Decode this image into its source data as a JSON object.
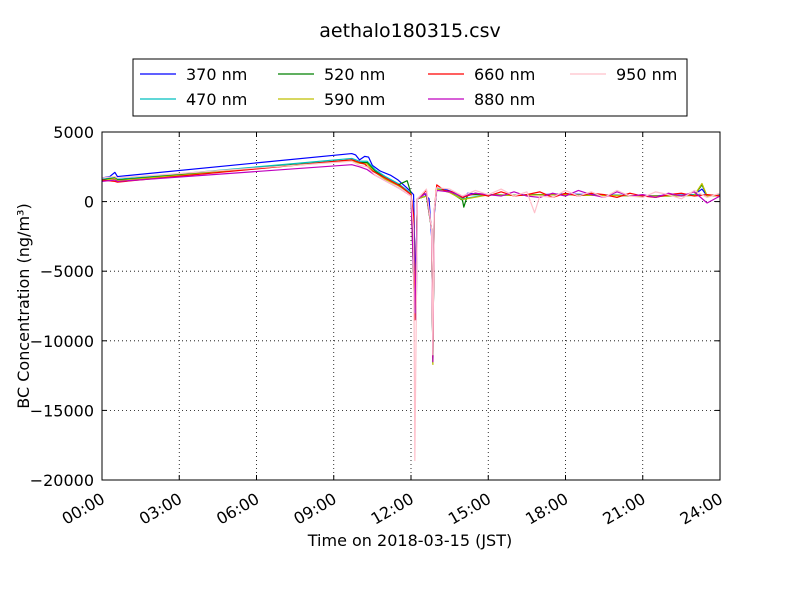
{
  "chart_data": {
    "type": "line",
    "title": "aethalo180315.csv",
    "xlabel": "Time on 2018-03-15 (JST)",
    "ylabel": "BC Concentration (ng/m³)",
    "xlim": [
      "00:00",
      "24:00"
    ],
    "ylim": [
      -20000,
      5000
    ],
    "xticks": [
      "00:00",
      "03:00",
      "06:00",
      "09:00",
      "12:00",
      "15:00",
      "18:00",
      "21:00",
      "24:00"
    ],
    "yticks": [
      5000,
      0,
      -5000,
      -10000,
      -15000,
      -20000
    ],
    "ytick_labels": [
      "5000",
      "0",
      "−5000",
      "−10000",
      "−15000",
      "−20000"
    ],
    "grid": true,
    "legend_position": "top, above plot",
    "series": [
      {
        "name": "370 nm",
        "color": "#0000ff",
        "points": [
          [
            0.0,
            1700
          ],
          [
            0.3,
            1800
          ],
          [
            0.5,
            2100
          ],
          [
            0.6,
            1800
          ],
          [
            9.7,
            3450
          ],
          [
            9.85,
            3350
          ],
          [
            10.0,
            3000
          ],
          [
            10.2,
            3250
          ],
          [
            10.35,
            3200
          ],
          [
            10.5,
            2600
          ],
          [
            10.8,
            2200
          ],
          [
            11.2,
            1900
          ],
          [
            11.5,
            1550
          ],
          [
            11.8,
            1050
          ],
          [
            12.0,
            700
          ],
          [
            12.1,
            500
          ],
          [
            12.15,
            -4000
          ],
          [
            12.2,
            -8500
          ],
          [
            12.25,
            200
          ],
          [
            12.5,
            600
          ],
          [
            12.7,
            200
          ],
          [
            12.8,
            -2500
          ],
          [
            12.85,
            -11300
          ],
          [
            12.9,
            -1000
          ],
          [
            13.0,
            1000
          ],
          [
            13.3,
            900
          ],
          [
            13.6,
            700
          ],
          [
            13.9,
            500
          ],
          [
            14.0,
            200
          ],
          [
            14.2,
            600
          ],
          [
            15.0,
            500
          ],
          [
            16.0,
            450
          ],
          [
            17.0,
            500
          ],
          [
            18.0,
            550
          ],
          [
            19.0,
            500
          ],
          [
            20.0,
            450
          ],
          [
            21.0,
            400
          ],
          [
            22.0,
            450
          ],
          [
            23.0,
            500
          ],
          [
            23.3,
            900
          ],
          [
            23.5,
            400
          ],
          [
            24.0,
            500
          ]
        ]
      },
      {
        "name": "470 nm",
        "color": "#00bfbf",
        "points": [
          [
            0.0,
            1600
          ],
          [
            0.5,
            1750
          ],
          [
            0.6,
            1600
          ],
          [
            9.7,
            3100
          ],
          [
            10.0,
            2900
          ],
          [
            10.3,
            2900
          ],
          [
            10.6,
            2300
          ],
          [
            11.0,
            1800
          ],
          [
            11.5,
            1300
          ],
          [
            12.0,
            600
          ],
          [
            12.15,
            -8000
          ],
          [
            12.25,
            200
          ],
          [
            12.6,
            400
          ],
          [
            12.8,
            -2000
          ],
          [
            12.85,
            -11500
          ],
          [
            12.9,
            -800
          ],
          [
            13.0,
            1000
          ],
          [
            13.5,
            700
          ],
          [
            14.0,
            200
          ],
          [
            15.0,
            500
          ],
          [
            16.0,
            450
          ],
          [
            17.0,
            500
          ],
          [
            18.0,
            500
          ],
          [
            19.0,
            450
          ],
          [
            20.0,
            450
          ],
          [
            21.0,
            400
          ],
          [
            22.0,
            400
          ],
          [
            23.0,
            500
          ],
          [
            24.0,
            450
          ]
        ]
      },
      {
        "name": "520 nm",
        "color": "#008000",
        "points": [
          [
            0.0,
            1550
          ],
          [
            0.5,
            1700
          ],
          [
            0.6,
            1550
          ],
          [
            9.7,
            3000
          ],
          [
            10.0,
            2800
          ],
          [
            10.3,
            2800
          ],
          [
            10.6,
            2200
          ],
          [
            11.0,
            1700
          ],
          [
            11.5,
            1200
          ],
          [
            11.85,
            1500
          ],
          [
            12.0,
            600
          ],
          [
            12.15,
            -8200
          ],
          [
            12.25,
            200
          ],
          [
            12.6,
            400
          ],
          [
            12.8,
            -2000
          ],
          [
            12.85,
            -11600
          ],
          [
            12.9,
            -800
          ],
          [
            13.0,
            900
          ],
          [
            13.5,
            700
          ],
          [
            14.0,
            100
          ],
          [
            14.05,
            -400
          ],
          [
            14.2,
            500
          ],
          [
            15.0,
            500
          ],
          [
            16.0,
            450
          ],
          [
            17.0,
            500
          ],
          [
            18.0,
            500
          ],
          [
            19.0,
            450
          ],
          [
            20.0,
            450
          ],
          [
            21.0,
            400
          ],
          [
            22.0,
            400
          ],
          [
            23.0,
            450
          ],
          [
            23.3,
            1200
          ],
          [
            23.5,
            400
          ],
          [
            24.0,
            450
          ]
        ]
      },
      {
        "name": "590 nm",
        "color": "#bfbf00",
        "points": [
          [
            0.0,
            1500
          ],
          [
            0.5,
            1650
          ],
          [
            0.6,
            1500
          ],
          [
            9.7,
            2950
          ],
          [
            10.0,
            2750
          ],
          [
            10.3,
            2700
          ],
          [
            10.6,
            2100
          ],
          [
            11.0,
            1600
          ],
          [
            11.5,
            1150
          ],
          [
            12.0,
            550
          ],
          [
            12.15,
            -8300
          ],
          [
            12.25,
            200
          ],
          [
            12.6,
            400
          ],
          [
            12.8,
            -2000
          ],
          [
            12.85,
            -11700
          ],
          [
            12.9,
            -800
          ],
          [
            13.0,
            900
          ],
          [
            13.5,
            650
          ],
          [
            14.0,
            150
          ],
          [
            15.0,
            480
          ],
          [
            16.0,
            450
          ],
          [
            17.0,
            480
          ],
          [
            18.0,
            500
          ],
          [
            19.0,
            450
          ],
          [
            20.0,
            430
          ],
          [
            21.0,
            400
          ],
          [
            22.0,
            400
          ],
          [
            23.0,
            450
          ],
          [
            23.3,
            1300
          ],
          [
            23.5,
            400
          ],
          [
            24.0,
            450
          ]
        ]
      },
      {
        "name": "660 nm",
        "color": "#ff0000",
        "points": [
          [
            0.0,
            1550
          ],
          [
            0.5,
            1450
          ],
          [
            0.6,
            1400
          ],
          [
            9.7,
            3000
          ],
          [
            10.0,
            2800
          ],
          [
            10.2,
            2700
          ],
          [
            10.5,
            2200
          ],
          [
            10.8,
            1900
          ],
          [
            11.2,
            1500
          ],
          [
            11.6,
            1100
          ],
          [
            12.0,
            500
          ],
          [
            12.1,
            -1000
          ],
          [
            12.15,
            -8500
          ],
          [
            12.25,
            200
          ],
          [
            12.6,
            800
          ],
          [
            12.8,
            -2000
          ],
          [
            12.85,
            -11200
          ],
          [
            12.9,
            -700
          ],
          [
            13.0,
            1200
          ],
          [
            13.3,
            800
          ],
          [
            13.6,
            700
          ],
          [
            14.0,
            300
          ],
          [
            14.5,
            600
          ],
          [
            15.0,
            400
          ],
          [
            15.5,
            700
          ],
          [
            16.0,
            400
          ],
          [
            16.5,
            500
          ],
          [
            17.0,
            700
          ],
          [
            17.5,
            300
          ],
          [
            18.0,
            600
          ],
          [
            18.5,
            400
          ],
          [
            19.0,
            600
          ],
          [
            19.5,
            500
          ],
          [
            20.0,
            300
          ],
          [
            20.5,
            600
          ],
          [
            21.0,
            400
          ],
          [
            21.5,
            300
          ],
          [
            22.0,
            500
          ],
          [
            22.5,
            600
          ],
          [
            23.0,
            400
          ],
          [
            23.5,
            500
          ],
          [
            24.0,
            400
          ]
        ]
      },
      {
        "name": "880 nm",
        "color": "#bf00bf",
        "points": [
          [
            0.0,
            1450
          ],
          [
            0.5,
            1550
          ],
          [
            0.6,
            1450
          ],
          [
            9.7,
            2650
          ],
          [
            10.0,
            2500
          ],
          [
            10.3,
            2300
          ],
          [
            10.6,
            1900
          ],
          [
            11.0,
            1500
          ],
          [
            11.5,
            1000
          ],
          [
            12.0,
            400
          ],
          [
            12.15,
            -8000
          ],
          [
            12.25,
            200
          ],
          [
            12.6,
            600
          ],
          [
            12.8,
            -2000
          ],
          [
            12.85,
            -11500
          ],
          [
            12.9,
            -700
          ],
          [
            13.0,
            800
          ],
          [
            13.5,
            700
          ],
          [
            14.0,
            400
          ],
          [
            14.5,
            600
          ],
          [
            15.0,
            500
          ],
          [
            15.5,
            400
          ],
          [
            16.0,
            700
          ],
          [
            16.5,
            400
          ],
          [
            17.0,
            300
          ],
          [
            17.5,
            600
          ],
          [
            18.0,
            400
          ],
          [
            18.5,
            800
          ],
          [
            19.0,
            500
          ],
          [
            19.5,
            300
          ],
          [
            20.0,
            700
          ],
          [
            20.5,
            400
          ],
          [
            21.0,
            500
          ],
          [
            21.5,
            300
          ],
          [
            22.0,
            600
          ],
          [
            22.5,
            400
          ],
          [
            23.0,
            700
          ],
          [
            23.5,
            -100
          ],
          [
            24.0,
            400
          ]
        ]
      },
      {
        "name": "950 nm",
        "color": "#ffc0cb",
        "points": [
          [
            0.0,
            1700
          ],
          [
            0.5,
            1800
          ],
          [
            0.6,
            1700
          ],
          [
            9.7,
            2900
          ],
          [
            10.0,
            2600
          ],
          [
            10.3,
            2500
          ],
          [
            10.6,
            1900
          ],
          [
            11.0,
            1500
          ],
          [
            11.5,
            1000
          ],
          [
            12.0,
            400
          ],
          [
            12.1,
            -2000
          ],
          [
            12.15,
            -18600
          ],
          [
            12.25,
            200
          ],
          [
            12.6,
            900
          ],
          [
            12.8,
            -2000
          ],
          [
            12.85,
            -11000
          ],
          [
            12.9,
            -600
          ],
          [
            13.0,
            1000
          ],
          [
            13.5,
            900
          ],
          [
            14.0,
            400
          ],
          [
            14.5,
            800
          ],
          [
            15.0,
            500
          ],
          [
            15.5,
            900
          ],
          [
            16.0,
            400
          ],
          [
            16.5,
            700
          ],
          [
            16.8,
            -800
          ],
          [
            17.0,
            400
          ],
          [
            17.5,
            300
          ],
          [
            18.0,
            800
          ],
          [
            18.5,
            400
          ],
          [
            19.0,
            700
          ],
          [
            19.5,
            300
          ],
          [
            20.0,
            800
          ],
          [
            20.5,
            400
          ],
          [
            21.0,
            300
          ],
          [
            21.5,
            700
          ],
          [
            22.0,
            500
          ],
          [
            22.5,
            200
          ],
          [
            23.0,
            800
          ],
          [
            23.5,
            300
          ],
          [
            24.0,
            600
          ]
        ]
      }
    ]
  }
}
